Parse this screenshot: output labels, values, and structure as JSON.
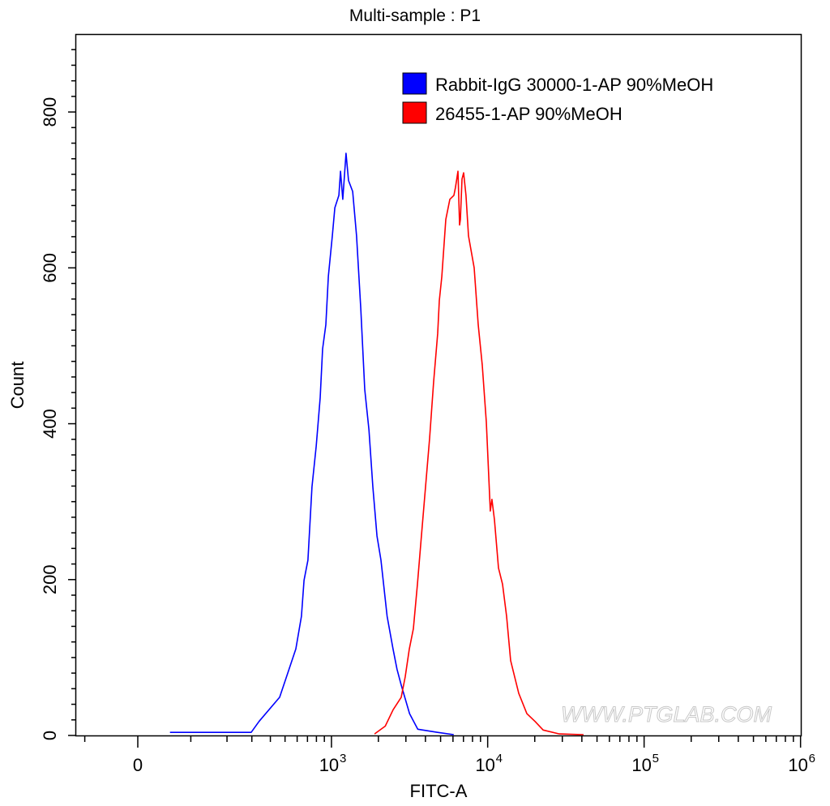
{
  "chart_data": {
    "type": "line",
    "title": "Multi-sample : P1",
    "xlabel": "FITC-A",
    "ylabel": "Count",
    "x_scale": "biexponential",
    "xlim": [
      -120,
      1000000
    ],
    "ylim": [
      0,
      900
    ],
    "x_ticks": [
      {
        "value": 0,
        "base": "0",
        "exp": ""
      },
      {
        "value": 1000,
        "base": "10",
        "exp": "3"
      },
      {
        "value": 10000,
        "base": "10",
        "exp": "4"
      },
      {
        "value": 100000,
        "base": "10",
        "exp": "5"
      },
      {
        "value": 1000000,
        "base": "10",
        "exp": "6"
      }
    ],
    "y_ticks": [
      "0",
      "200",
      "400",
      "600",
      "800"
    ],
    "grid": false,
    "legend_position": "top-right",
    "watermark": "WWW.PTGLAB.COM",
    "series": [
      {
        "name": "Rabbit-IgG 30000-1-AP 90%MeOH",
        "color": "#0000ff",
        "x": [
          57,
          150,
          297,
          336,
          461,
          521,
          588,
          640,
          665,
          705,
          749,
          797,
          846,
          877,
          920,
          955,
          1013,
          1051,
          1116,
          1143,
          1183,
          1212,
          1241,
          1288,
          1368,
          1450,
          1543,
          1636,
          1740,
          1844,
          1960,
          2077,
          2274,
          2482,
          2633,
          2796,
          3167,
          3573,
          4779,
          6067
        ],
        "y": [
          4,
          4,
          4,
          18,
          49,
          80,
          111,
          153,
          199,
          225,
          319,
          371,
          433,
          496,
          527,
          589,
          641,
          677,
          693,
          724,
          688,
          719,
          747,
          712,
          698,
          641,
          548,
          444,
          392,
          319,
          256,
          225,
          153,
          111,
          85,
          65,
          28,
          8,
          4,
          1
        ]
      },
      {
        "name": "26455-1-AP 90%MeOH",
        "color": "#ff0000",
        "x": [
          1891,
          2212,
          2486,
          2800,
          2970,
          3155,
          3350,
          3555,
          3775,
          4005,
          4252,
          4513,
          4792,
          4908,
          5090,
          5400,
          5732,
          6080,
          6226,
          6454,
          6610,
          6690,
          6854,
          7018,
          7270,
          7540,
          8200,
          8700,
          9235,
          9800,
          10400,
          10650,
          11040,
          11720,
          12440,
          13210,
          14030,
          14880,
          15800,
          17800,
          20070,
          22620,
          28700,
          41000
        ],
        "y": [
          2,
          12,
          33,
          49,
          75,
          111,
          137,
          194,
          257,
          319,
          381,
          454,
          516,
          558,
          589,
          662,
          688,
          693,
          703,
          724,
          655,
          662,
          714,
          722,
          693,
          641,
          600,
          527,
          475,
          402,
          288,
          303,
          277,
          215,
          194,
          153,
          96,
          75,
          54,
          28,
          18,
          7,
          2,
          1
        ]
      }
    ]
  }
}
